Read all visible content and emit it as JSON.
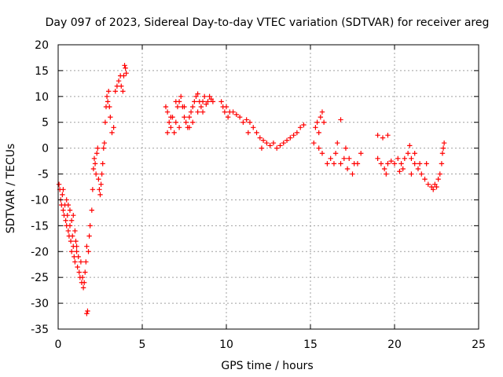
{
  "chart_data": {
    "type": "scatter",
    "title": "Day 097 of 2023, Sidereal Day-to-day VTEC variation (SDTVAR) for receiver areg",
    "xlabel": "GPS time / hours",
    "ylabel": "SDTVAR / TECUs",
    "xlim": [
      0,
      25
    ],
    "ylim": [
      -35,
      20
    ],
    "xticks": [
      0,
      5,
      10,
      15,
      20,
      25
    ],
    "yticks": [
      -35,
      -30,
      -25,
      -20,
      -15,
      -10,
      -5,
      0,
      5,
      10,
      15,
      20
    ],
    "grid": true,
    "marker": "+",
    "series_color": "#ff0000",
    "series": [
      {
        "name": "SDTVAR",
        "points": [
          [
            0.05,
            -7
          ],
          [
            0.1,
            -8
          ],
          [
            0.15,
            -10
          ],
          [
            0.2,
            -11
          ],
          [
            0.25,
            -9
          ],
          [
            0.3,
            -12
          ],
          [
            0.35,
            -13
          ],
          [
            0.4,
            -11
          ],
          [
            0.45,
            -14
          ],
          [
            0.5,
            -15
          ],
          [
            0.55,
            -13
          ],
          [
            0.6,
            -16
          ],
          [
            0.65,
            -17
          ],
          [
            0.7,
            -15
          ],
          [
            0.75,
            -18
          ],
          [
            0.8,
            -20
          ],
          [
            0.85,
            -17
          ],
          [
            0.9,
            -19
          ],
          [
            0.95,
            -21
          ],
          [
            1.0,
            -22
          ],
          [
            1.05,
            -18
          ],
          [
            1.1,
            -20
          ],
          [
            1.15,
            -23
          ],
          [
            1.2,
            -21
          ],
          [
            1.25,
            -24
          ],
          [
            1.3,
            -25
          ],
          [
            1.35,
            -22
          ],
          [
            1.4,
            -26
          ],
          [
            1.45,
            -25
          ],
          [
            1.5,
            -27
          ],
          [
            1.55,
            -26
          ],
          [
            1.6,
            -24
          ],
          [
            0.3,
            -8
          ],
          [
            0.5,
            -10
          ],
          [
            0.7,
            -12
          ],
          [
            0.9,
            -13
          ],
          [
            1.0,
            -16
          ],
          [
            1.1,
            -19
          ],
          [
            0.8,
            -14
          ],
          [
            0.6,
            -11
          ],
          [
            1.7,
            -32
          ],
          [
            1.75,
            -31.5
          ],
          [
            1.65,
            -22
          ],
          [
            1.7,
            -19
          ],
          [
            1.8,
            -20
          ],
          [
            1.85,
            -17
          ],
          [
            1.9,
            -15
          ],
          [
            2.0,
            -12
          ],
          [
            2.05,
            -8
          ],
          [
            2.1,
            -4
          ],
          [
            2.15,
            -2
          ],
          [
            2.2,
            -3
          ],
          [
            2.25,
            -5
          ],
          [
            2.3,
            -1
          ],
          [
            2.35,
            0
          ],
          [
            2.4,
            -6
          ],
          [
            2.45,
            -8
          ],
          [
            2.5,
            -9
          ],
          [
            2.55,
            -7
          ],
          [
            2.6,
            -5
          ],
          [
            2.65,
            -3
          ],
          [
            2.7,
            0
          ],
          [
            2.75,
            1
          ],
          [
            2.8,
            5
          ],
          [
            2.85,
            8
          ],
          [
            2.9,
            10
          ],
          [
            2.95,
            9
          ],
          [
            3.0,
            11
          ],
          [
            3.05,
            8
          ],
          [
            3.1,
            6
          ],
          [
            3.2,
            3
          ],
          [
            3.3,
            4
          ],
          [
            3.4,
            11
          ],
          [
            3.5,
            12
          ],
          [
            3.6,
            13
          ],
          [
            3.7,
            14
          ],
          [
            3.75,
            12
          ],
          [
            3.85,
            11
          ],
          [
            3.9,
            14
          ],
          [
            3.95,
            16
          ],
          [
            4.0,
            15.5
          ],
          [
            4.05,
            14.5
          ],
          [
            6.4,
            8
          ],
          [
            6.5,
            7
          ],
          [
            6.6,
            5
          ],
          [
            6.7,
            4
          ],
          [
            6.8,
            6
          ],
          [
            6.9,
            3
          ],
          [
            7.0,
            5
          ],
          [
            7.1,
            8
          ],
          [
            7.2,
            9
          ],
          [
            7.3,
            10
          ],
          [
            7.4,
            8
          ],
          [
            7.5,
            6
          ],
          [
            7.6,
            5
          ],
          [
            7.7,
            4
          ],
          [
            7.8,
            6
          ],
          [
            7.9,
            7
          ],
          [
            8.0,
            8
          ],
          [
            8.1,
            9
          ],
          [
            8.2,
            10
          ],
          [
            8.3,
            10.5
          ],
          [
            8.4,
            9
          ],
          [
            8.5,
            8
          ],
          [
            8.6,
            9
          ],
          [
            8.7,
            10
          ],
          [
            8.8,
            8.5
          ],
          [
            8.9,
            9
          ],
          [
            9.0,
            10
          ],
          [
            9.1,
            9.5
          ],
          [
            6.5,
            3
          ],
          [
            6.7,
            6
          ],
          [
            7.0,
            9
          ],
          [
            7.2,
            4
          ],
          [
            7.5,
            8
          ],
          [
            7.8,
            4
          ],
          [
            8.0,
            5
          ],
          [
            8.3,
            7
          ],
          [
            8.6,
            7
          ],
          [
            9.2,
            9
          ],
          [
            9.7,
            9
          ],
          [
            9.8,
            8
          ],
          [
            9.9,
            7
          ],
          [
            10.0,
            8
          ],
          [
            10.1,
            6
          ],
          [
            10.2,
            7
          ],
          [
            10.4,
            7
          ],
          [
            10.6,
            6.5
          ],
          [
            10.8,
            6
          ],
          [
            11.0,
            5
          ],
          [
            11.2,
            5.5
          ],
          [
            11.4,
            5
          ],
          [
            11.6,
            4
          ],
          [
            11.8,
            3
          ],
          [
            12.0,
            2
          ],
          [
            12.2,
            1.5
          ],
          [
            12.4,
            1
          ],
          [
            12.6,
            0.5
          ],
          [
            12.8,
            1
          ],
          [
            13.0,
            0
          ],
          [
            13.2,
            0.5
          ],
          [
            13.4,
            1
          ],
          [
            13.6,
            1.5
          ],
          [
            13.8,
            2
          ],
          [
            14.0,
            2.5
          ],
          [
            14.2,
            3
          ],
          [
            14.4,
            4
          ],
          [
            14.6,
            4.5
          ],
          [
            11.3,
            3
          ],
          [
            12.1,
            0
          ],
          [
            15.2,
            1
          ],
          [
            15.3,
            4
          ],
          [
            15.4,
            5
          ],
          [
            15.5,
            3
          ],
          [
            15.6,
            6
          ],
          [
            15.7,
            7
          ],
          [
            15.8,
            5
          ],
          [
            15.5,
            0
          ],
          [
            15.7,
            -1
          ],
          [
            16.0,
            -3
          ],
          [
            16.2,
            -2
          ],
          [
            16.4,
            -3
          ],
          [
            16.6,
            1
          ],
          [
            16.8,
            5.5
          ],
          [
            16.5,
            -1
          ],
          [
            17.0,
            -2
          ],
          [
            17.2,
            -4
          ],
          [
            17.5,
            -5
          ],
          [
            17.8,
            -3
          ],
          [
            18.0,
            -1
          ],
          [
            17.3,
            -2
          ],
          [
            17.6,
            -3
          ],
          [
            16.8,
            -3
          ],
          [
            17.1,
            0
          ],
          [
            19.0,
            2.5
          ],
          [
            19.3,
            2
          ],
          [
            19.6,
            2.5
          ],
          [
            19.0,
            -2
          ],
          [
            19.2,
            -3
          ],
          [
            19.4,
            -4
          ],
          [
            19.6,
            -3
          ],
          [
            19.8,
            -2.5
          ],
          [
            20.0,
            -3
          ],
          [
            20.2,
            -2
          ],
          [
            20.4,
            -3
          ],
          [
            20.6,
            -2
          ],
          [
            20.8,
            -1
          ],
          [
            21.0,
            -2
          ],
          [
            21.2,
            -3
          ],
          [
            21.4,
            -4
          ],
          [
            21.6,
            -5
          ],
          [
            21.8,
            -6
          ],
          [
            22.0,
            -7
          ],
          [
            22.2,
            -7.5
          ],
          [
            22.4,
            -7
          ],
          [
            22.6,
            -6
          ],
          [
            22.7,
            -5
          ],
          [
            22.8,
            -3
          ],
          [
            22.85,
            -1
          ],
          [
            22.9,
            0
          ],
          [
            22.95,
            1
          ],
          [
            20.5,
            -4
          ],
          [
            21.0,
            -5
          ],
          [
            21.5,
            -3
          ],
          [
            20.9,
            0.5
          ],
          [
            21.2,
            -1
          ],
          [
            19.5,
            -5
          ],
          [
            22.3,
            -8
          ],
          [
            22.5,
            -7.5
          ],
          [
            21.9,
            -3
          ],
          [
            20.3,
            -4.5
          ]
        ]
      }
    ]
  }
}
